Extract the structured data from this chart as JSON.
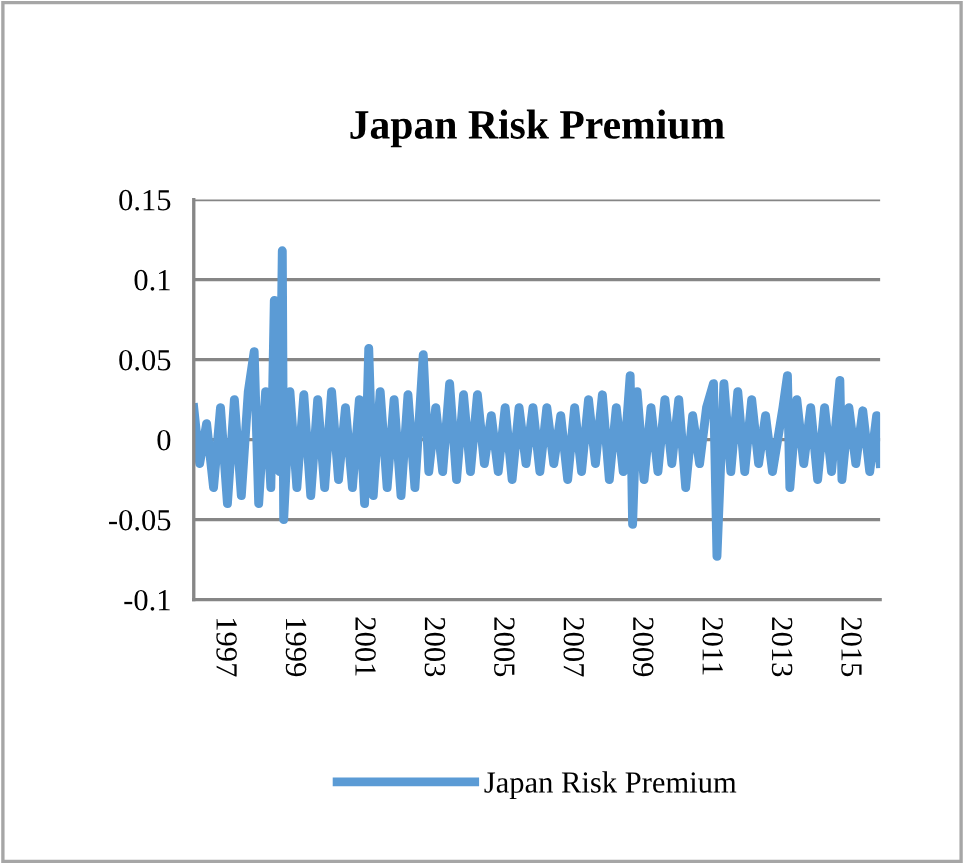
{
  "chart_data": {
    "type": "line",
    "title": "Japan Risk Premium",
    "x": [
      1996.13,
      1996.3,
      1996.5,
      1996.7,
      1996.9,
      1997.1,
      1997.3,
      1997.5,
      1997.7,
      1997.87,
      1998.0,
      1998.2,
      1998.35,
      1998.45,
      1998.6,
      1998.68,
      1998.72,
      1998.9,
      1999.1,
      1999.3,
      1999.5,
      1999.7,
      1999.9,
      2000.1,
      2000.3,
      2000.5,
      2000.7,
      2000.9,
      2001.05,
      2001.17,
      2001.3,
      2001.5,
      2001.7,
      2001.9,
      2002.1,
      2002.3,
      2002.5,
      2002.74,
      2002.9,
      2003.1,
      2003.3,
      2003.5,
      2003.7,
      2003.9,
      2004.1,
      2004.3,
      2004.5,
      2004.7,
      2004.9,
      2005.1,
      2005.3,
      2005.5,
      2005.7,
      2005.9,
      2006.1,
      2006.3,
      2006.5,
      2006.7,
      2006.9,
      2007.1,
      2007.3,
      2007.5,
      2007.7,
      2007.9,
      2008.1,
      2008.3,
      2008.5,
      2008.7,
      2008.77,
      2008.9,
      2009.1,
      2009.3,
      2009.5,
      2009.7,
      2009.9,
      2010.1,
      2010.3,
      2010.5,
      2010.7,
      2010.9,
      2011.1,
      2011.2,
      2011.4,
      2011.6,
      2011.8,
      2012.0,
      2012.2,
      2012.4,
      2012.6,
      2012.8,
      2013.1,
      2013.23,
      2013.3,
      2013.5,
      2013.7,
      2013.9,
      2014.1,
      2014.3,
      2014.5,
      2014.74,
      2014.8,
      2015.0,
      2015.2,
      2015.4,
      2015.6,
      2015.8,
      2015.9
    ],
    "series": [
      {
        "name": "Japan Risk Premium",
        "color": "#5b9bd5",
        "values": [
          0.02,
          -0.015,
          0.01,
          -0.03,
          0.02,
          -0.04,
          0.025,
          -0.035,
          0.03,
          0.055,
          -0.04,
          0.03,
          -0.03,
          0.087,
          -0.02,
          0.118,
          -0.05,
          0.03,
          -0.03,
          0.028,
          -0.035,
          0.025,
          -0.03,
          0.03,
          -0.025,
          0.02,
          -0.03,
          0.025,
          -0.04,
          0.057,
          -0.035,
          0.03,
          -0.03,
          0.025,
          -0.035,
          0.028,
          -0.03,
          0.053,
          -0.02,
          0.02,
          -0.02,
          0.035,
          -0.025,
          0.028,
          -0.02,
          0.028,
          -0.015,
          0.015,
          -0.02,
          0.02,
          -0.025,
          0.02,
          -0.015,
          0.02,
          -0.02,
          0.02,
          -0.015,
          0.015,
          -0.025,
          0.02,
          -0.02,
          0.025,
          -0.015,
          0.028,
          -0.025,
          0.02,
          -0.02,
          0.04,
          -0.053,
          0.03,
          -0.025,
          0.02,
          -0.02,
          0.025,
          -0.015,
          0.025,
          -0.03,
          0.015,
          -0.015,
          0.02,
          0.035,
          -0.073,
          0.035,
          -0.02,
          0.03,
          -0.02,
          0.025,
          -0.015,
          0.015,
          -0.02,
          0.02,
          0.04,
          -0.03,
          0.025,
          -0.015,
          0.02,
          -0.025,
          0.02,
          -0.02,
          0.037,
          -0.025,
          0.02,
          -0.015,
          0.018,
          -0.02,
          0.015,
          -0.015
        ]
      }
    ],
    "xlim": [
      1996.13,
      2015.9
    ],
    "xticks": [
      1997,
      1999,
      2001,
      2003,
      2005,
      2007,
      2009,
      2011,
      2013,
      2015
    ],
    "ylim": [
      -0.1,
      0.15
    ],
    "yticks": [
      -0.1,
      -0.05,
      0,
      0.05,
      0.1,
      0.15
    ],
    "grid": "y",
    "legend": "bottom",
    "marker": "none",
    "line_style": "solid"
  }
}
